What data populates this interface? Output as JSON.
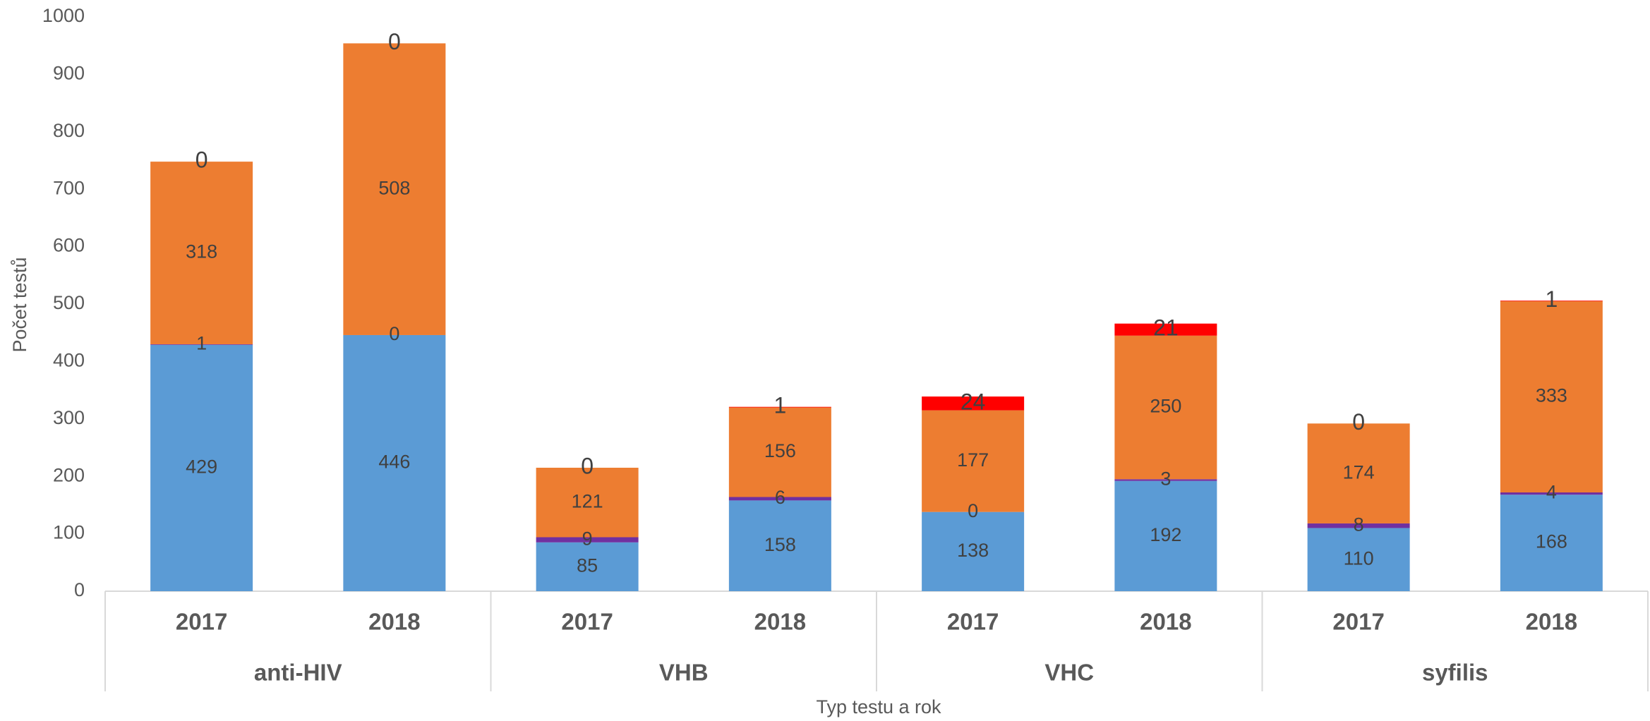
{
  "chart_data": {
    "type": "stacked_bar",
    "ylabel": "Počet testů",
    "xlabel": "Typ testu a rok",
    "categories": [
      "2017",
      "2018",
      "2017",
      "2018",
      "2017",
      "2018",
      "2017",
      "2018"
    ],
    "category_groups": [
      "anti-HIV",
      "VHB",
      "VHC",
      "syfilis"
    ],
    "series": [
      {
        "color": "#5b9bd5",
        "values": [
          429,
          446,
          85,
          158,
          138,
          192,
          110,
          168
        ]
      },
      {
        "color": "#7030a0",
        "values": [
          1,
          0,
          9,
          6,
          0,
          3,
          8,
          4
        ]
      },
      {
        "color": "#ed7d31",
        "values": [
          318,
          508,
          121,
          156,
          177,
          250,
          174,
          333
        ]
      },
      {
        "color": "#ff0000",
        "values": [
          0,
          0,
          0,
          1,
          24,
          21,
          0,
          1
        ]
      }
    ],
    "ylim": [
      0,
      1000
    ],
    "yticks": [
      0,
      100,
      200,
      300,
      400,
      500,
      600,
      700,
      800,
      900,
      1000
    ],
    "grid": false
  }
}
